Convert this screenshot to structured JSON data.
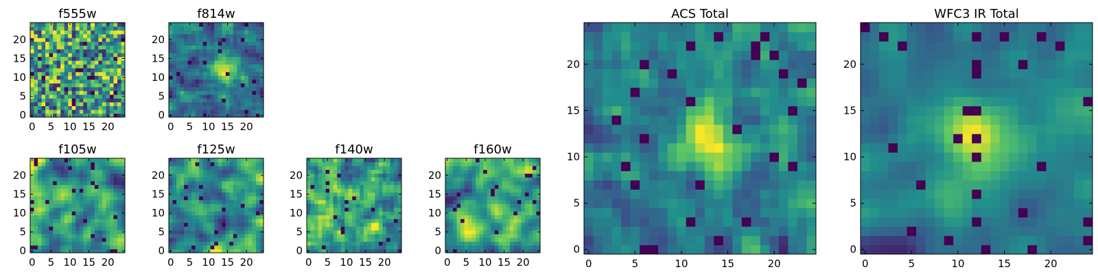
{
  "chart_data": [
    {
      "id": "f555w",
      "type": "heatmap",
      "title": "f555w",
      "size": 25,
      "seed": 11,
      "smooth": 0,
      "xticks": [
        0,
        5,
        10,
        15,
        20
      ],
      "yticks": [
        0,
        5,
        10,
        15,
        20
      ]
    },
    {
      "id": "f814w",
      "type": "heatmap",
      "title": "f814w",
      "size": 25,
      "seed": 23,
      "smooth": 1,
      "hotspot": [
        14,
        12
      ],
      "xticks": [
        0,
        5,
        10,
        15,
        20
      ],
      "yticks": [
        0,
        5,
        10,
        15,
        20
      ]
    },
    {
      "id": "f105w",
      "type": "heatmap",
      "title": "f105w",
      "size": 25,
      "seed": 37,
      "smooth": 2,
      "xticks": [
        0,
        5,
        10,
        15,
        20
      ],
      "yticks": [
        0,
        5,
        10,
        15,
        20
      ]
    },
    {
      "id": "f125w",
      "type": "heatmap",
      "title": "f125w",
      "size": 25,
      "seed": 41,
      "smooth": 2,
      "xticks": [
        0,
        5,
        10,
        15,
        20
      ],
      "yticks": [
        0,
        5,
        10,
        15,
        20
      ]
    },
    {
      "id": "f140w",
      "type": "heatmap",
      "title": "f140w",
      "size": 25,
      "seed": 53,
      "smooth": 1,
      "xticks": [
        0,
        5,
        10,
        15,
        20
      ],
      "yticks": [
        0,
        5,
        10,
        15,
        20
      ]
    },
    {
      "id": "f160w",
      "type": "heatmap",
      "title": "f160w",
      "size": 25,
      "seed": 67,
      "smooth": 2,
      "xticks": [
        0,
        5,
        10,
        15,
        20
      ],
      "yticks": [
        0,
        5,
        10,
        15,
        20
      ]
    },
    {
      "id": "acs_total",
      "type": "heatmap",
      "title": "ACS Total",
      "size": 25,
      "seed": 79,
      "smooth": 1,
      "hotspot": [
        13,
        12
      ],
      "xticks": [
        0,
        5,
        10,
        15,
        20
      ],
      "yticks": [
        0,
        5,
        10,
        15,
        20
      ]
    },
    {
      "id": "wfc3_ir_total",
      "type": "heatmap",
      "title": "WFC3 IR Total",
      "size": 25,
      "seed": 97,
      "smooth": 2,
      "hotspot": [
        12,
        12
      ],
      "xticks": [
        0,
        5,
        10,
        15,
        20
      ],
      "yticks": [
        0,
        5,
        10,
        15,
        20
      ]
    }
  ],
  "colormap": [
    "#440154",
    "#3b528b",
    "#21908d",
    "#5dc863",
    "#fde725"
  ]
}
